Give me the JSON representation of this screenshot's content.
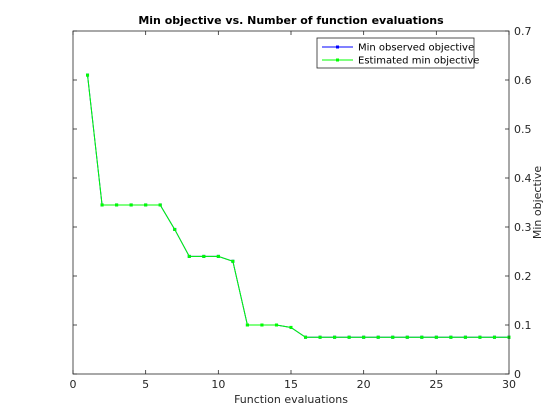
{
  "chart_data": {
    "type": "line",
    "title": "Min objective vs. Number of function evaluations",
    "xlabel": "Function evaluations",
    "ylabel": "Min objective",
    "xlim": [
      0,
      30
    ],
    "ylim": [
      0,
      0.7
    ],
    "xticks": [
      "0",
      "5",
      "10",
      "15",
      "20",
      "25",
      "30"
    ],
    "yticks": [
      "0",
      "0.1",
      "0.2",
      "0.3",
      "0.4",
      "0.5",
      "0.6",
      "0.7"
    ],
    "y_axis_side": "right",
    "grid": false,
    "legend_position": "top-right",
    "x": [
      1,
      2,
      3,
      4,
      5,
      6,
      7,
      8,
      9,
      10,
      11,
      12,
      13,
      14,
      15,
      16,
      17,
      18,
      19,
      20,
      21,
      22,
      23,
      24,
      25,
      26,
      27,
      28,
      29,
      30
    ],
    "series": [
      {
        "name": "Min observed objective",
        "color": "#0000ff",
        "values": [
          0.61,
          0.345,
          0.345,
          0.345,
          0.345,
          0.345,
          0.295,
          0.24,
          0.24,
          0.24,
          0.23,
          0.1,
          0.1,
          0.1,
          0.095,
          0.075,
          0.075,
          0.075,
          0.075,
          0.075,
          0.075,
          0.075,
          0.075,
          0.075,
          0.075,
          0.075,
          0.075,
          0.075,
          0.075,
          0.075
        ]
      },
      {
        "name": "Estimated min objective",
        "color": "#00ff00",
        "values": [
          0.61,
          0.345,
          0.345,
          0.345,
          0.345,
          0.345,
          0.295,
          0.24,
          0.24,
          0.24,
          0.23,
          0.1,
          0.1,
          0.1,
          0.095,
          0.075,
          0.075,
          0.075,
          0.075,
          0.075,
          0.075,
          0.075,
          0.075,
          0.075,
          0.075,
          0.075,
          0.075,
          0.075,
          0.075,
          0.075
        ]
      }
    ]
  }
}
